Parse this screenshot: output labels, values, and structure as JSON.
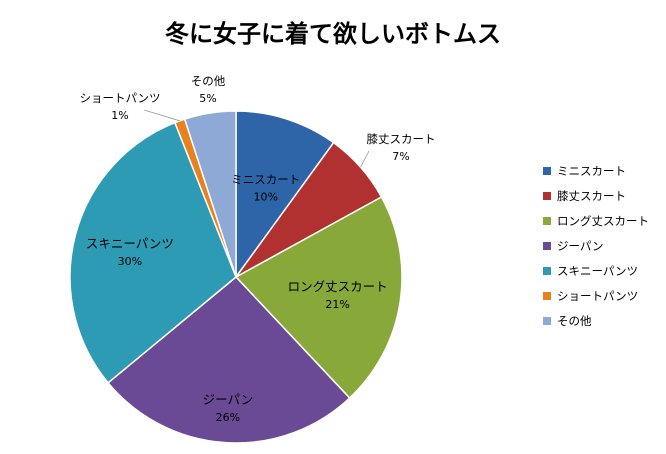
{
  "chart_data": {
    "type": "pie",
    "title": "冬に女子に着て欲しいボトムス",
    "legend_position": "right",
    "slices": [
      {
        "label": "ミニスカート",
        "value": 10,
        "value_label": "10%",
        "color": "#2E65A8"
      },
      {
        "label": "膝丈スカート",
        "value": 7,
        "value_label": "7%",
        "color": "#B0312F"
      },
      {
        "label": "ロング丈スカート",
        "value": 21,
        "value_label": "21%",
        "color": "#88A83A"
      },
      {
        "label": "ジーパン",
        "value": 26,
        "value_label": "26%",
        "color": "#6A4A94"
      },
      {
        "label": "スキニーパンツ",
        "value": 30,
        "value_label": "30%",
        "color": "#2E9BB5"
      },
      {
        "label": "ショートパンツ",
        "value": 1,
        "value_label": "1%",
        "color": "#E8821E"
      },
      {
        "label": "その他",
        "value": 5,
        "value_label": "5%",
        "color": "#8FA9D6"
      }
    ]
  }
}
